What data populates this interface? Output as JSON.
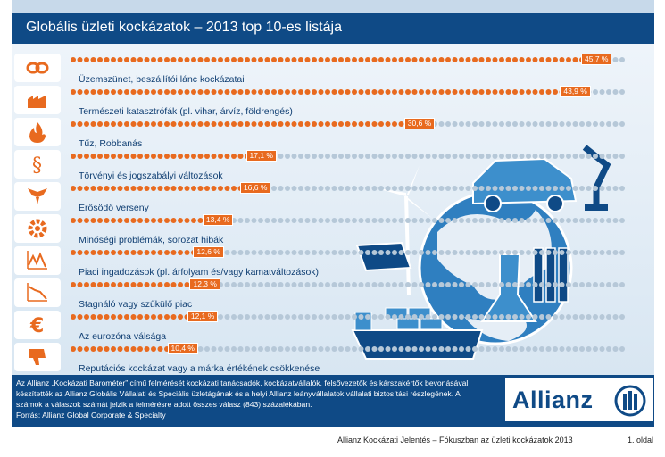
{
  "title": "Globális üzleti kockázatok – 2013 top 10-es listája",
  "chart_data": {
    "type": "bar",
    "orientation": "horizontal",
    "categories": [
      "Üzemszünet, beszállítói lánc kockázatai",
      "Természeti katasztrófák (pl. vihar, árvíz, földrengés)",
      "Tűz, Robbanás",
      "Törvényi és jogszabályi változások",
      "Erősödő verseny",
      "Minőségi problémák, sorozat hibák",
      "Piaci ingadozások (pl. árfolyam és/vagy kamatváltozások)",
      "Stagnáló vagy szűkülő piac",
      "Az eurozóna válsága",
      "Reputációs kockázat vagy a márka értékének csökkenése"
    ],
    "values": [
      45.7,
      43.9,
      30.6,
      17.1,
      16.6,
      13.4,
      12.6,
      12.3,
      12.1,
      10.4
    ],
    "value_labels": [
      "45,7 %",
      "43,9 %",
      "30,6 %",
      "17,1 %",
      "16,6 %",
      "13,4 %",
      "12,6 %",
      "12,3 %",
      "12,1 %",
      "10,4 %"
    ],
    "unit": "%",
    "xlim": [
      0,
      45.7
    ],
    "colors": {
      "filled": "#e86a1f",
      "track": "#b6c8d8",
      "label_bg": "#e86a1f"
    }
  },
  "icons": [
    "chain-icon",
    "factory-storm-icon",
    "fire-icon",
    "paragraph-icon",
    "eagle-icon",
    "gear-icon",
    "market-fluctuation-icon",
    "declining-chart-icon",
    "euro-icon",
    "thumbs-down-icon"
  ],
  "footer": {
    "note_lines": [
      "Az Allianz „Kockázati Barométer” című felmérését kockázati tanácsadók, kockázatvállalók, felsővezetők és kárszakértők bevonásával",
      "készítették az Allianz Globális Vállalati és Speciális üzletágának és a helyi Allianz leányvállalatok vállalati biztosítási részlegének. A",
      "számok a válaszok számát jelzik a felmérésre adott összes válasz (843) százalékában.",
      "Forrás: Allianz Global Corporate & Specialty"
    ],
    "logo_text": "Allianz"
  },
  "page_footer": {
    "report_title": "Allianz Kockázati Jelentés – Fókuszban az üzleti kockázatok 2013",
    "page_number": "1. oldal"
  },
  "colors": {
    "header_bg": "#0f4a86",
    "accent": "#e86a1f",
    "text_dark": "#0f3e72"
  }
}
